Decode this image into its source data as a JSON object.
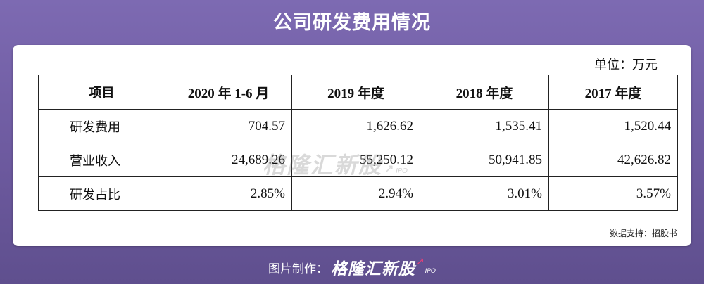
{
  "title": "公司研发费用情况",
  "unit": "单位：万元",
  "table": {
    "headers": [
      "项目",
      "2020 年 1-6 月",
      "2019 年度",
      "2018 年度",
      "2017 年度"
    ],
    "rows": [
      {
        "label": "研发费用",
        "cells": [
          "704.57",
          "1,626.62",
          "1,535.41",
          "1,520.44"
        ]
      },
      {
        "label": "营业收入",
        "cells": [
          "24,689.26",
          "55,250.12",
          "50,941.85",
          "42,626.82"
        ]
      },
      {
        "label": "研发占比",
        "cells": [
          "2.85%",
          "2.94%",
          "3.01%",
          "3.57%"
        ]
      }
    ]
  },
  "watermark": {
    "text": "格隆汇新股",
    "sub": "IPO",
    "icon": "arrow-up-right-icon"
  },
  "source": "数据支持：招股书",
  "footer": {
    "credit_label": "图片制作：",
    "brand": "格隆汇新股",
    "brand_sub": "IPO",
    "brand_icon": "arrow-up-right-icon",
    "brand_icon_color": "#e0407a"
  }
}
